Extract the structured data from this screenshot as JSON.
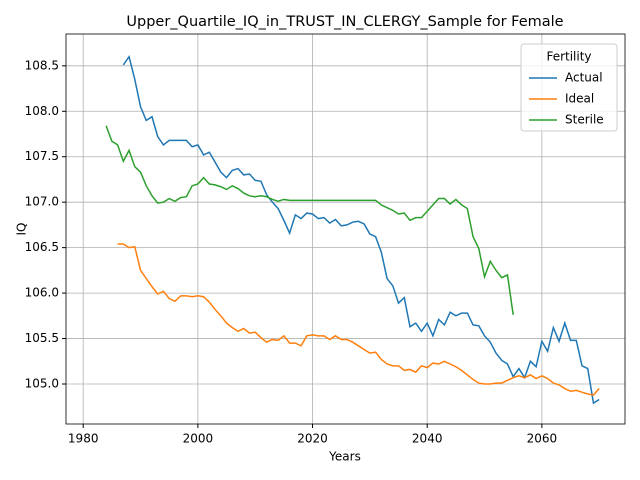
{
  "chart_data": {
    "type": "line",
    "title": "Upper_Quartile_IQ_in_TRUST_IN_CLERGY_Sample for Female",
    "xlabel": "Years",
    "ylabel": "IQ",
    "xlim": [
      1977,
      2074.5
    ],
    "ylim": [
      104.56,
      108.85
    ],
    "xticks": [
      1980,
      2000,
      2020,
      2040,
      2060
    ],
    "yticks": [
      {
        "value": 105,
        "label": "105.0"
      },
      105.5,
      {
        "value": 106,
        "label": "106.0"
      },
      106.5,
      {
        "value": 107,
        "label": "107.0"
      },
      107.5,
      {
        "value": 108,
        "label": "108.0"
      },
      108.5
    ],
    "grid": true,
    "legend_title": "Fertility",
    "legend_loc": "upper right",
    "series": [
      {
        "name": "Actual",
        "color": "#1f77b4",
        "x": [
          1987,
          1988,
          1989,
          1990,
          1991,
          1992,
          1993,
          1994,
          1995,
          1996,
          1997,
          1998,
          1999,
          2000,
          2001,
          2002,
          2003,
          2004,
          2005,
          2006,
          2007,
          2008,
          2009,
          2010,
          2011,
          2012,
          2013,
          2014,
          2015,
          2016,
          2017,
          2018,
          2019,
          2020,
          2021,
          2022,
          2023,
          2024,
          2025,
          2026,
          2027,
          2028,
          2029,
          2030,
          2031,
          2032,
          2033,
          2034,
          2035,
          2036,
          2037,
          2038,
          2039,
          2040,
          2041,
          2042,
          2043,
          2044,
          2045,
          2046,
          2047,
          2048,
          2049,
          2050,
          2051,
          2052,
          2053,
          2054,
          2055,
          2056,
          2057,
          2058,
          2059,
          2060,
          2061,
          2062,
          2063,
          2064,
          2065,
          2066,
          2067,
          2068,
          2069,
          2070
        ],
        "values": [
          108.51,
          108.6,
          108.35,
          108.05,
          107.9,
          107.94,
          107.72,
          107.63,
          107.68,
          107.68,
          107.68,
          107.68,
          107.61,
          107.63,
          107.52,
          107.55,
          107.44,
          107.33,
          107.27,
          107.35,
          107.37,
          107.3,
          107.31,
          107.24,
          107.23,
          107.08,
          107.0,
          106.93,
          106.8,
          106.66,
          106.86,
          106.82,
          106.88,
          106.87,
          106.82,
          106.83,
          106.77,
          106.81,
          106.74,
          106.75,
          106.78,
          106.79,
          106.76,
          106.65,
          106.62,
          106.45,
          106.16,
          106.08,
          105.89,
          105.95,
          105.63,
          105.67,
          105.58,
          105.67,
          105.53,
          105.71,
          105.65,
          105.79,
          105.75,
          105.78,
          105.78,
          105.65,
          105.64,
          105.53,
          105.46,
          105.34,
          105.26,
          105.22,
          105.08,
          105.17,
          105.07,
          105.25,
          105.19,
          105.47,
          105.36,
          105.62,
          105.47,
          105.67,
          105.48,
          105.48,
          105.2,
          105.17,
          104.79,
          104.83
        ]
      },
      {
        "name": "Ideal",
        "color": "#ff7f0e",
        "x": [
          1986,
          1987,
          1988,
          1989,
          1990,
          1991,
          1992,
          1993,
          1994,
          1995,
          1996,
          1997,
          1998,
          1999,
          2000,
          2001,
          2002,
          2003,
          2004,
          2005,
          2006,
          2007,
          2008,
          2009,
          2010,
          2011,
          2012,
          2013,
          2014,
          2015,
          2016,
          2017,
          2018,
          2019,
          2020,
          2021,
          2022,
          2023,
          2024,
          2025,
          2026,
          2027,
          2028,
          2029,
          2030,
          2031,
          2032,
          2033,
          2034,
          2035,
          2036,
          2037,
          2038,
          2039,
          2040,
          2041,
          2042,
          2043,
          2044,
          2045,
          2046,
          2047,
          2048,
          2049,
          2050,
          2051,
          2052,
          2053,
          2054,
          2055,
          2056,
          2057,
          2058,
          2059,
          2060,
          2061,
          2062,
          2063,
          2064,
          2065,
          2066,
          2067,
          2068,
          2069,
          2070
        ],
        "values": [
          106.54,
          106.54,
          106.5,
          106.51,
          106.25,
          106.16,
          106.07,
          105.99,
          106.02,
          105.94,
          105.91,
          105.97,
          105.97,
          105.96,
          105.97,
          105.96,
          105.9,
          105.82,
          105.75,
          105.67,
          105.62,
          105.58,
          105.61,
          105.56,
          105.57,
          105.51,
          105.46,
          105.49,
          105.48,
          105.53,
          105.45,
          105.45,
          105.42,
          105.53,
          105.54,
          105.53,
          105.53,
          105.49,
          105.53,
          105.49,
          105.49,
          105.46,
          105.42,
          105.38,
          105.34,
          105.35,
          105.27,
          105.22,
          105.2,
          105.2,
          105.15,
          105.16,
          105.13,
          105.2,
          105.18,
          105.23,
          105.22,
          105.25,
          105.22,
          105.19,
          105.15,
          105.1,
          105.05,
          105.01,
          105.0,
          105.0,
          105.01,
          105.01,
          105.04,
          105.07,
          105.09,
          105.07,
          105.1,
          105.06,
          105.09,
          105.06,
          105.01,
          104.99,
          104.95,
          104.92,
          104.93,
          104.91,
          104.89,
          104.88,
          104.95
        ]
      },
      {
        "name": "Sterile",
        "color": "#2ca02c",
        "x": [
          1984,
          1985,
          1986,
          1987,
          1988,
          1989,
          1990,
          1991,
          1992,
          1993,
          1994,
          1995,
          1996,
          1997,
          1998,
          1999,
          2000,
          2001,
          2002,
          2003,
          2004,
          2005,
          2006,
          2007,
          2008,
          2009,
          2010,
          2011,
          2012,
          2013,
          2014,
          2015,
          2016,
          2017,
          2018,
          2019,
          2020,
          2021,
          2022,
          2023,
          2024,
          2025,
          2026,
          2027,
          2028,
          2029,
          2030,
          2031,
          2032,
          2033,
          2034,
          2035,
          2036,
          2037,
          2038,
          2039,
          2040,
          2041,
          2042,
          2043,
          2044,
          2045,
          2046,
          2047,
          2048,
          2049,
          2050,
          2051,
          2052,
          2053,
          2054,
          2055
        ],
        "values": [
          107.84,
          107.67,
          107.63,
          107.45,
          107.57,
          107.39,
          107.33,
          107.18,
          107.07,
          106.99,
          107.0,
          107.04,
          107.01,
          107.05,
          107.06,
          107.18,
          107.2,
          107.27,
          107.2,
          107.19,
          107.17,
          107.14,
          107.18,
          107.15,
          107.1,
          107.07,
          107.06,
          107.07,
          107.06,
          107.03,
          107.01,
          107.03,
          107.02,
          107.02,
          107.02,
          107.02,
          107.02,
          107.02,
          107.02,
          107.02,
          107.02,
          107.02,
          107.02,
          107.02,
          107.02,
          107.02,
          107.02,
          107.02,
          106.97,
          106.94,
          106.91,
          106.87,
          106.88,
          106.8,
          106.83,
          106.83,
          106.9,
          106.97,
          107.04,
          107.04,
          106.98,
          107.03,
          106.97,
          106.93,
          106.62,
          106.49,
          106.18,
          106.35,
          106.25,
          106.17,
          106.2,
          105.76
        ]
      }
    ]
  }
}
